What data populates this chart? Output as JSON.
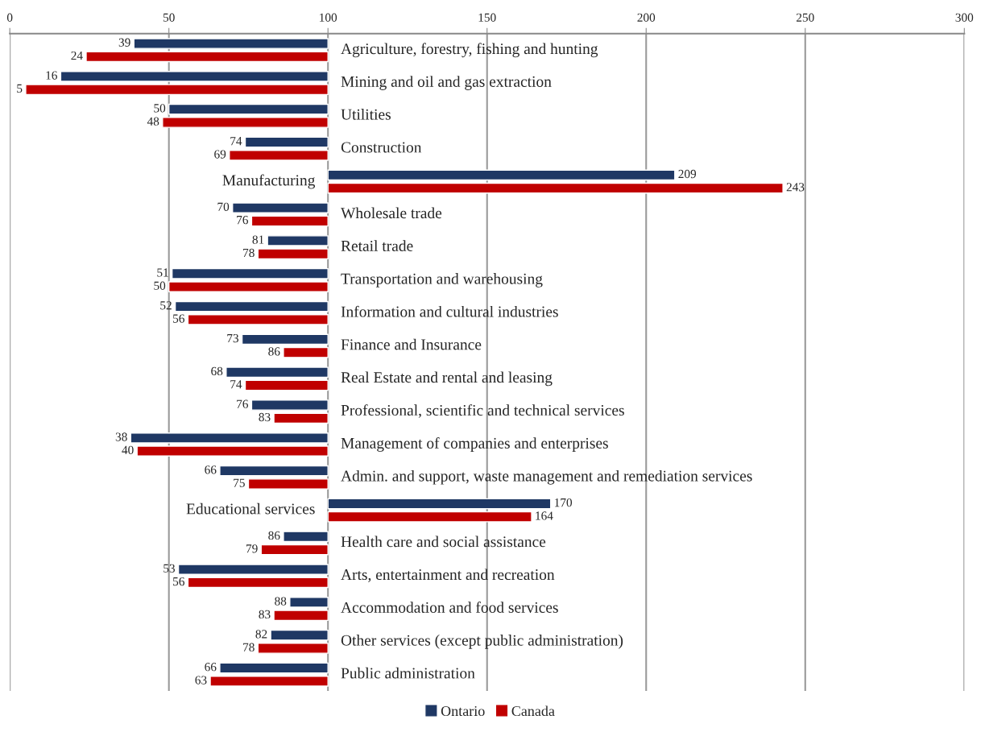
{
  "chart_data": {
    "type": "bar",
    "orientation": "horizontal",
    "categories": [
      "Agriculture, forestry, fishing and hunting",
      "Mining and oil and gas extraction",
      "Utilities",
      "Construction",
      "Manufacturing",
      "Wholesale trade",
      "Retail trade",
      "Transportation and warehousing",
      "Information and cultural industries",
      "Finance and Insurance",
      "Real Estate and rental and leasing",
      "Professional, scientific and technical services",
      "Management of companies and enterprises",
      "Admin. and support, waste management and remediation services",
      "Educational services",
      "Health care and social assistance",
      "Arts, entertainment and recreation",
      "Accommodation and food services",
      "Other services (except public administration)",
      "Public administration"
    ],
    "series": [
      {
        "name": "Ontario",
        "color": "#1f3864",
        "base": [
          100,
          100,
          100,
          100,
          100,
          100,
          100,
          100,
          100,
          100,
          100,
          100,
          100,
          100,
          100,
          100,
          100,
          100,
          100,
          100
        ],
        "values": [
          -61,
          -84,
          -50,
          -26,
          109,
          -30,
          -19,
          -49,
          -48,
          -27,
          -32,
          -24,
          -62,
          -34,
          70,
          -14,
          -47,
          -12,
          -18,
          -34
        ]
      },
      {
        "name": "Canada",
        "color": "#c00000",
        "base": [
          100,
          100,
          100,
          100,
          100,
          100,
          100,
          100,
          100,
          100,
          100,
          100,
          100,
          100,
          100,
          100,
          100,
          100,
          100,
          100
        ],
        "values": [
          -76,
          -95,
          -52,
          -31,
          143,
          -24,
          -22,
          -50,
          -44,
          -14,
          -26,
          -17,
          -60,
          -25,
          64,
          -21,
          -44,
          -17,
          -22,
          -37
        ]
      }
    ],
    "annotations": [
      {
        "text": "39",
        "x": 39,
        "y": "Agriculture, forestry, fishing and hunting"
      },
      {
        "text": "24",
        "x": 24,
        "y": "Agriculture, forestry, fishing and hunting"
      },
      {
        "text": "16",
        "x": 16,
        "y": "Mining and oil and gas extraction"
      },
      {
        "text": "5",
        "x": 5,
        "y": "Mining and oil and gas extraction"
      },
      {
        "text": "50",
        "x": 50,
        "y": "Utilities"
      },
      {
        "text": "48",
        "x": 48,
        "y": "Utilities"
      },
      {
        "text": "74",
        "x": 74,
        "y": "Construction"
      },
      {
        "text": "69",
        "x": 69,
        "y": "Construction"
      },
      {
        "text": "209",
        "x": 209,
        "y": "Manufacturing"
      },
      {
        "text": "243",
        "x": 243,
        "y": "Manufacturing"
      },
      {
        "text": "70",
        "x": 70,
        "y": "Wholesale trade"
      },
      {
        "text": "76",
        "x": 76,
        "y": "Wholesale trade"
      },
      {
        "text": "81",
        "x": 81,
        "y": "Retail trade"
      },
      {
        "text": "78",
        "x": 78,
        "y": "Retail trade"
      },
      {
        "text": "51",
        "x": 51,
        "y": "Transportation and warehousing"
      },
      {
        "text": "50",
        "x": 50,
        "y": "Transportation and warehousing"
      },
      {
        "text": "52",
        "x": 52,
        "y": "Information and cultural industries"
      },
      {
        "text": "56",
        "x": 56,
        "y": "Information and cultural industries"
      },
      {
        "text": "73",
        "x": 73,
        "y": "Finance and Insurance"
      },
      {
        "text": "86",
        "x": 86,
        "y": "Finance and Insurance"
      },
      {
        "text": "68",
        "x": 68,
        "y": "Real Estate and rental and leasing"
      },
      {
        "text": "74",
        "x": 74,
        "y": "Real Estate and rental and leasing"
      },
      {
        "text": "76",
        "x": 76,
        "y": "Professional, scientific and technical services"
      },
      {
        "text": "83",
        "x": 83,
        "y": "Professional, scientific and technical services"
      },
      {
        "text": "38",
        "x": 38,
        "y": "Management of companies and enterprises"
      },
      {
        "text": "40",
        "x": 40,
        "y": "Management of companies and enterprises"
      },
      {
        "text": "66",
        "x": 66,
        "y": "Admin. and support, waste management and remediation services"
      },
      {
        "text": "75",
        "x": 75,
        "y": "Admin. and support, waste management and remediation services"
      },
      {
        "text": "170",
        "x": 170,
        "y": "Educational services"
      },
      {
        "text": "164",
        "x": 164,
        "y": "Educational services"
      },
      {
        "text": "86",
        "x": 86,
        "y": "Health care and social assistance"
      },
      {
        "text": "79",
        "x": 79,
        "y": "Health care and social assistance"
      },
      {
        "text": "53",
        "x": 53,
        "y": "Arts, entertainment and recreation"
      },
      {
        "text": "56",
        "x": 56,
        "y": "Arts, entertainment and recreation"
      },
      {
        "text": "88",
        "x": 88,
        "y": "Accommodation and food services"
      },
      {
        "text": "83",
        "x": 83,
        "y": "Accommodation and food services"
      },
      {
        "text": "82",
        "x": 82,
        "y": "Other services (except public administration)"
      },
      {
        "text": "78",
        "x": 78,
        "y": "Other services (except public administration)"
      },
      {
        "text": "66",
        "x": 66,
        "y": "Public administration"
      },
      {
        "text": "63",
        "x": 63,
        "y": "Public administration"
      }
    ],
    "xlim": [
      0,
      300
    ],
    "xticks": [
      0,
      50,
      100,
      150,
      200,
      250,
      300
    ],
    "grid": "x",
    "legend": "bottom"
  }
}
